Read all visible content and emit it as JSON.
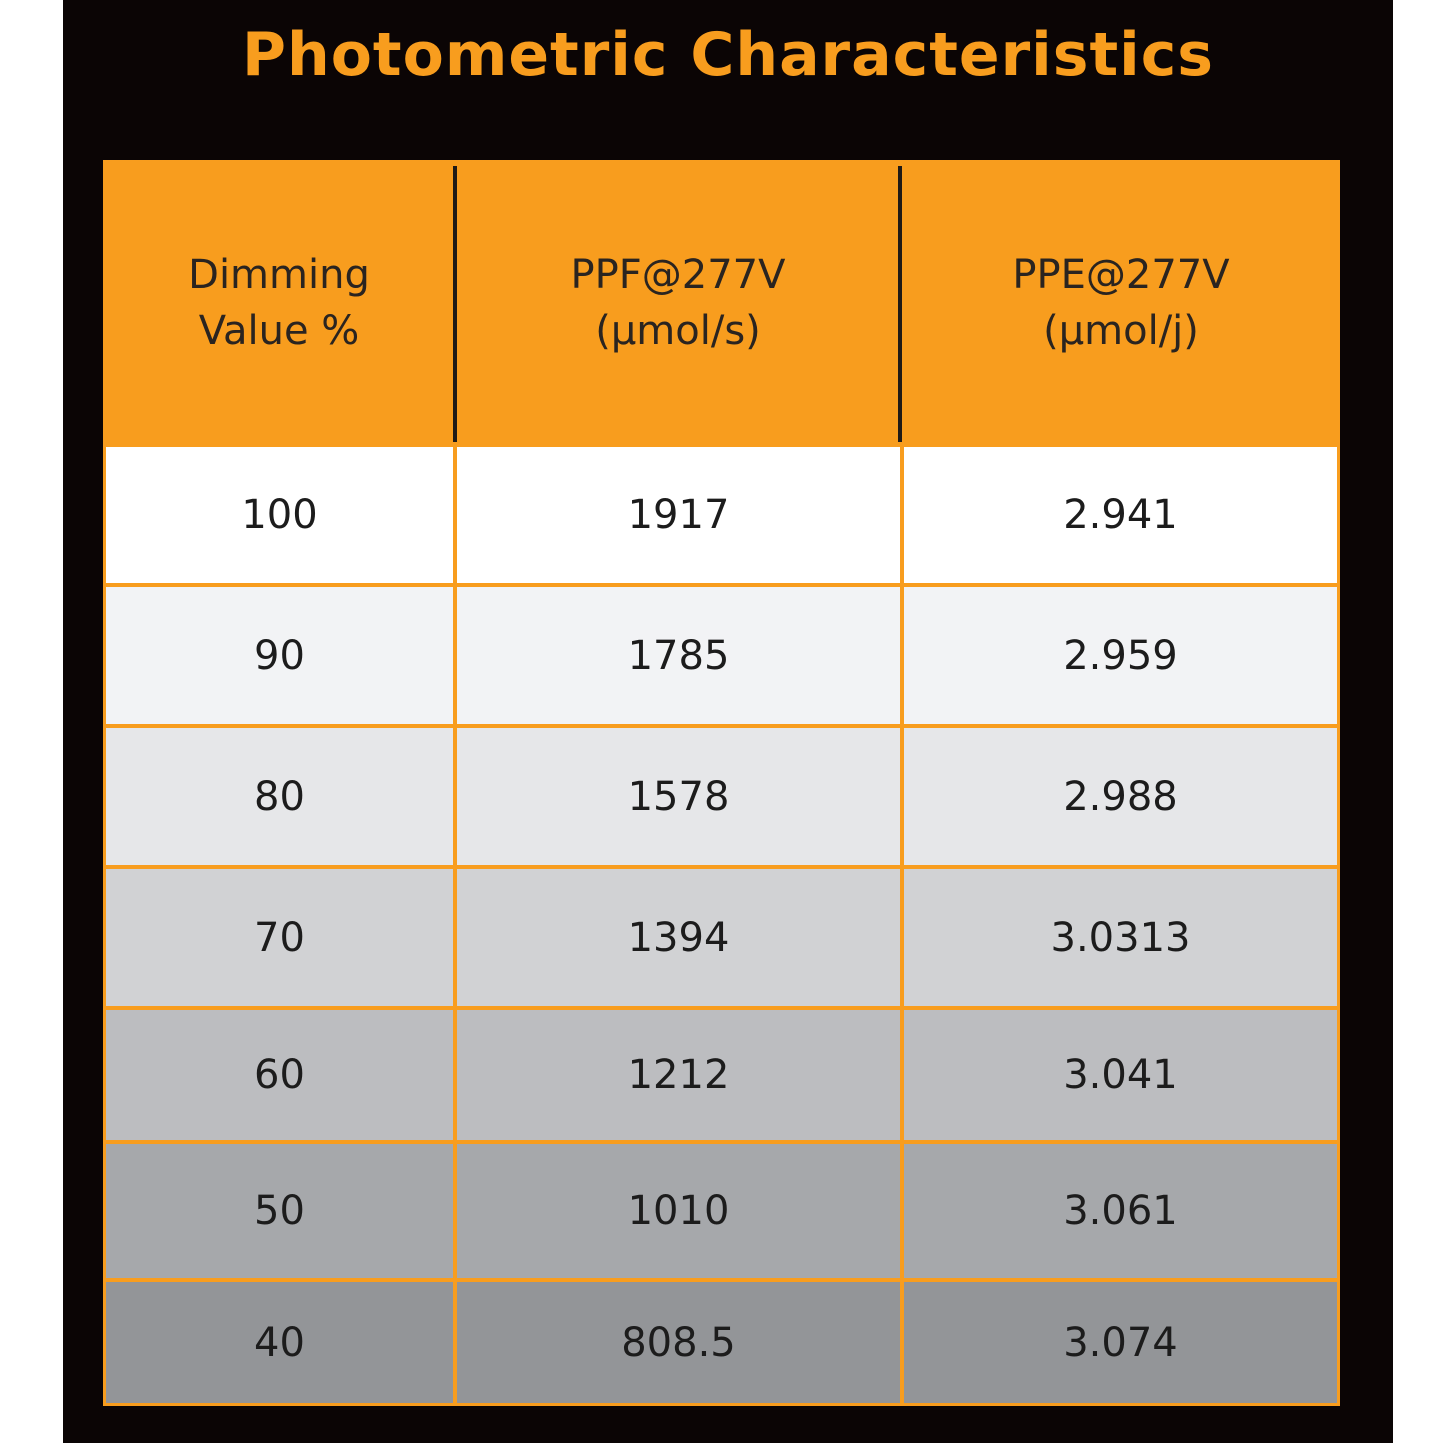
{
  "title": "Photometric Characteristics",
  "columns": [
    {
      "line1": "Dimming",
      "line2": "Value %"
    },
    {
      "line1": "PPF@277V",
      "line2": "(µmol/s)"
    },
    {
      "line1": "PPE@277V",
      "line2": "(µmol/j)"
    }
  ],
  "rows": [
    {
      "dimming": "100",
      "ppf": "1917",
      "ppe": "2.941",
      "bg": "#ffffff"
    },
    {
      "dimming": "90",
      "ppf": "1785",
      "ppe": "2.959",
      "bg": "#f2f3f5"
    },
    {
      "dimming": "80",
      "ppf": "1578",
      "ppe": "2.988",
      "bg": "#e6e7e9"
    },
    {
      "dimming": "70",
      "ppf": "1394",
      "ppe": "3.0313",
      "bg": "#d1d2d4"
    },
    {
      "dimming": "60",
      "ppf": "1212",
      "ppe": "3.041",
      "bg": "#bcbdc0"
    },
    {
      "dimming": "50",
      "ppf": "1010",
      "ppe": "3.061",
      "bg": "#a6a8ab"
    },
    {
      "dimming": "40",
      "ppf": "808.5",
      "ppe": "3.074",
      "bg": "#939598"
    }
  ],
  "colors": {
    "accent": "#f89d1e",
    "background": "#0b0505"
  }
}
